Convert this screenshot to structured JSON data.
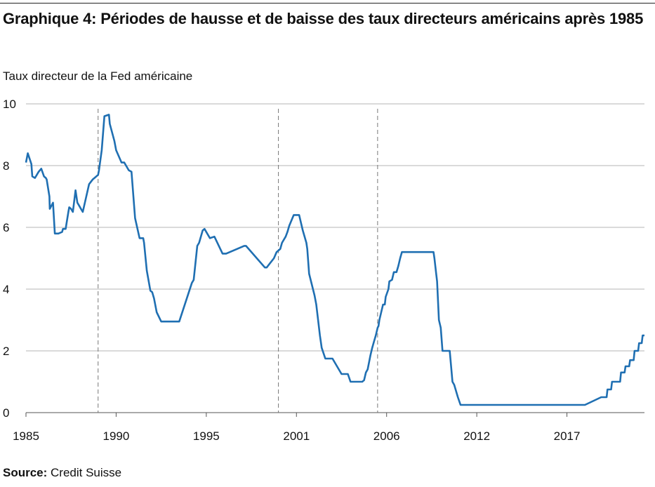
{
  "chart_data": {
    "type": "line",
    "title": "Graphique 4: Périodes de hausse et de baisse des taux directeurs américains après 1985",
    "ylabel": "Taux directeur de la Fed américaine",
    "xlabel": "",
    "xlim": [
      1985,
      2018.4
    ],
    "ylim": [
      0,
      10
    ],
    "x_ticks": [
      1985,
      1990,
      1995,
      2001,
      2006,
      2012,
      2017
    ],
    "x_tick_positions": [
      1985,
      1990,
      1995,
      2000,
      2005,
      2010,
      2015
    ],
    "y_ticks": [
      0,
      2,
      4,
      6,
      8,
      10
    ],
    "grid": "horizontal",
    "vertical_markers": [
      1989.0,
      1999.0,
      2004.5
    ],
    "line_color": "#1f6fb2",
    "series": [
      {
        "name": "",
        "x": [
          1985.0,
          1985.1,
          1985.3,
          1985.35,
          1985.5,
          1985.7,
          1985.85,
          1986.0,
          1986.1,
          1986.15,
          1986.3,
          1986.32,
          1986.5,
          1986.6,
          1986.8,
          1987.0,
          1987.05,
          1987.2,
          1987.35,
          1987.4,
          1987.5,
          1987.6,
          1987.75,
          1987.85,
          1987.95,
          1988.05,
          1988.15,
          1988.5,
          1988.7,
          1988.8,
          1989.0,
          1989.05,
          1989.2,
          1989.35,
          1989.6,
          1989.65,
          1989.9,
          1990.0,
          1990.3,
          1990.45,
          1990.7,
          1990.85,
          1991.05,
          1991.3,
          1991.5,
          1991.55,
          1991.7,
          1991.9,
          1992.0,
          1992.1,
          1992.25,
          1992.5,
          1993.5,
          1994.2,
          1994.3,
          1994.5,
          1994.6,
          1994.8,
          1994.9,
          1995.2,
          1995.45,
          1995.9,
          1996.1,
          1997.1,
          1997.2,
          1998.25,
          1998.35,
          1998.75,
          1998.9,
          1999.1,
          1999.2,
          1999.4,
          1999.5,
          1999.6,
          1999.85,
          2000.05,
          2000.15,
          2000.35,
          2000.55,
          2000.6,
          2000.7,
          2001.0,
          2001.1,
          2001.2,
          2001.3,
          2001.4,
          2001.6,
          2001.7,
          2001.8,
          2001.9,
          2002.0,
          2002.5,
          2002.85,
          2003.0,
          2003.1,
          2003.5,
          2003.55,
          2003.65,
          2003.75,
          2003.85,
          2003.95,
          2004.05,
          2004.1,
          2004.2,
          2004.3,
          2004.4,
          2004.5,
          2004.55,
          2004.6,
          2004.7,
          2004.8,
          2004.9,
          2004.95,
          2005.1,
          2005.15,
          2005.3,
          2005.4,
          2005.55,
          2005.65,
          2005.75,
          2005.85,
          2005.95,
          2006.5,
          2006.8,
          2007.6,
          2007.65,
          2007.75,
          2007.8,
          2007.9,
          2008.0,
          2008.1,
          2008.2,
          2008.5,
          2008.65,
          2008.75,
          2008.95,
          2009.1,
          2015.9,
          2016.0,
          2016.9,
          2017.0,
          2017.2,
          2017.25,
          2017.45,
          2017.5,
          2017.95,
          2018.0,
          2018.2,
          2018.25,
          2018.45,
          2018.5,
          2018.7,
          2018.75,
          2018.95,
          2019.0,
          2019.15,
          2019.2,
          2019.3
        ],
        "y": [
          8.1,
          8.4,
          8.05,
          7.65,
          7.6,
          7.8,
          7.9,
          7.65,
          7.6,
          7.55,
          7.0,
          6.6,
          6.8,
          5.8,
          5.8,
          5.85,
          5.95,
          5.95,
          6.5,
          6.65,
          6.6,
          6.5,
          7.2,
          6.8,
          6.7,
          6.6,
          6.5,
          7.4,
          7.55,
          7.6,
          7.7,
          7.85,
          8.5,
          9.6,
          9.65,
          9.35,
          8.8,
          8.5,
          8.1,
          8.1,
          7.85,
          7.8,
          6.3,
          5.65,
          5.65,
          5.5,
          4.6,
          3.95,
          3.9,
          3.7,
          3.25,
          2.95,
          2.95,
          4.2,
          4.3,
          5.4,
          5.5,
          5.9,
          5.95,
          5.65,
          5.7,
          5.15,
          5.15,
          5.4,
          5.4,
          4.7,
          4.7,
          5.0,
          5.2,
          5.3,
          5.5,
          5.7,
          5.85,
          6.05,
          6.4,
          6.4,
          6.4,
          5.9,
          5.5,
          5.3,
          4.5,
          3.8,
          3.5,
          3.0,
          2.5,
          2.1,
          1.75,
          1.75,
          1.75,
          1.75,
          1.75,
          1.25,
          1.25,
          1.0,
          1.0,
          1.0,
          1.0,
          1.0,
          1.05,
          1.3,
          1.4,
          1.7,
          1.85,
          2.1,
          2.3,
          2.5,
          2.75,
          2.8,
          3.0,
          3.25,
          3.5,
          3.5,
          3.75,
          4.0,
          4.25,
          4.3,
          4.55,
          4.55,
          4.75,
          5.0,
          5.2,
          5.2,
          5.2,
          5.2,
          5.2,
          5.0,
          4.5,
          4.25,
          3.0,
          2.75,
          2.0,
          2.0,
          2.0,
          1.0,
          0.9,
          0.5,
          0.25,
          0.25,
          0.25,
          0.5,
          0.5,
          0.5,
          0.75,
          0.75,
          1.0,
          1.0,
          1.3,
          1.3,
          1.5,
          1.5,
          1.7,
          1.7,
          2.0,
          2.0,
          2.25,
          2.25,
          2.5,
          2.5
        ]
      }
    ]
  },
  "source": {
    "label": "Source:",
    "text": " Credit Suisse"
  }
}
